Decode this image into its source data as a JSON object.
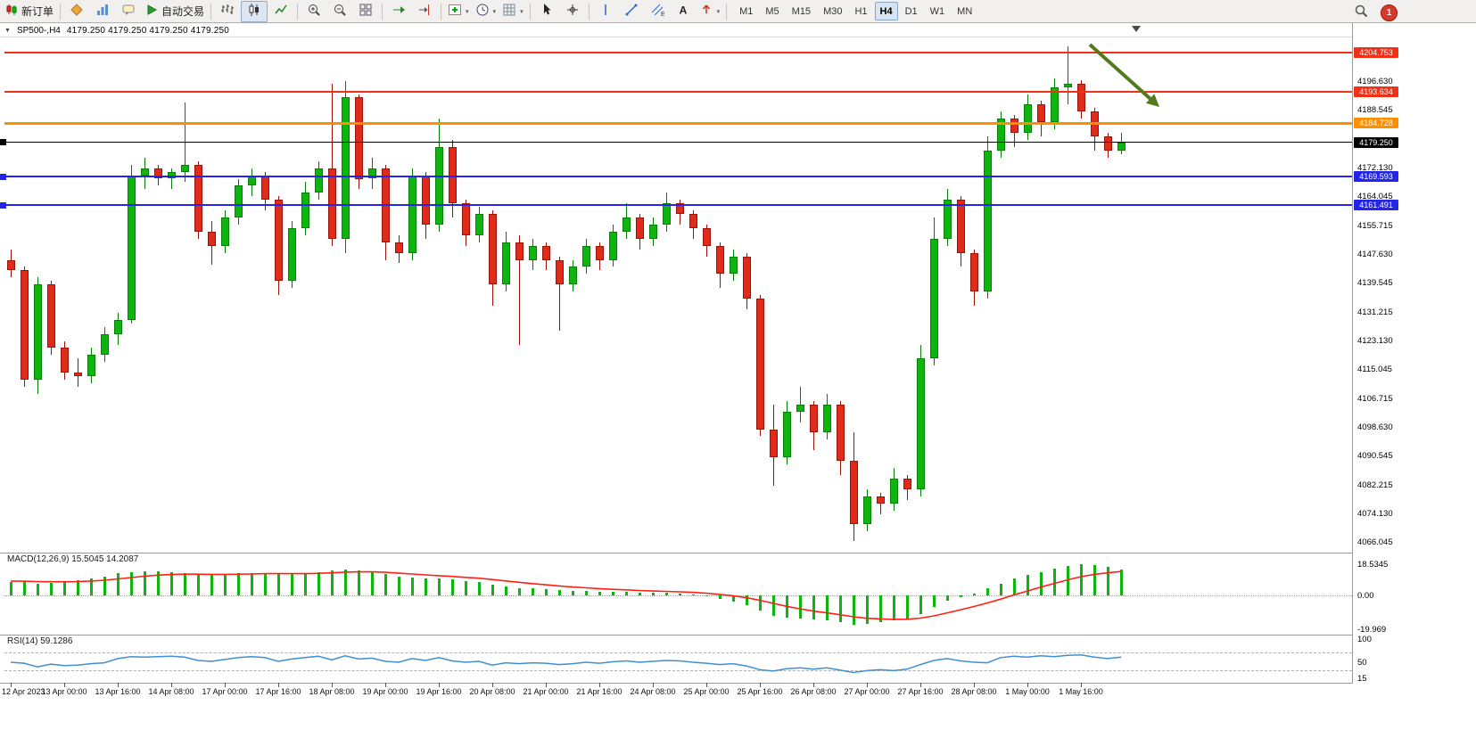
{
  "toolbar": {
    "new_order_label": "新订单",
    "auto_trading_label": "自动交易",
    "timeframe_labels": [
      "M1",
      "M5",
      "M15",
      "M30",
      "H1",
      "H4",
      "D1",
      "W1",
      "MN"
    ],
    "active_timeframe": "H4",
    "notification_badge": "1",
    "icons": [
      "new-order-icon",
      "metaquotes-icon",
      "charts-icon",
      "market-watch-icon",
      "auto-trading-icon",
      "bars-chart-icon",
      "candle-chart-icon",
      "line-chart-icon",
      "zoom-in-icon",
      "zoom-out-icon",
      "tile-windows-icon",
      "auto-scroll-icon",
      "chart-shift-icon",
      "add-indicator-icon",
      "period-icon",
      "grid-icon",
      "cursor-icon",
      "crosshair-icon",
      "vertical-line-icon",
      "trendline-icon",
      "equidistant-channel-icon",
      "text-label-icon",
      "arrow-object-icon",
      "search-icon",
      "notification-badge"
    ]
  },
  "chart_header": {
    "symbol": "SP500-,H4",
    "ohlc": "4179.250 4179.250 4179.250 4179.250"
  },
  "chart_data": {
    "type": "candlestick",
    "symbol": "SP500-",
    "timeframe": "H4",
    "colors": {
      "bull": "#0eb50e",
      "bull_border": "#067f06",
      "bear": "#e02a1a",
      "bear_border": "#9c1408",
      "macd_histogram": "#0eb50e",
      "macd_signal": "#ff2015",
      "rsi_line": "#3f8fd2",
      "line_red": "#f23018",
      "line_orange": "#ff8e00",
      "line_blue": "#2326e6",
      "line_black": "#000000",
      "arrow_green": "#557a1e"
    },
    "price_axis": {
      "max": 4204.753,
      "min": 4066.045,
      "labels": [
        "4196.630",
        "4188.545",
        "4172.130",
        "4164.045",
        "4155.715",
        "4147.630",
        "4139.545",
        "4131.215",
        "4123.130",
        "4115.045",
        "4106.715",
        "4098.630",
        "4090.545",
        "4082.215",
        "4074.130",
        "4066.045"
      ]
    },
    "hlines": [
      {
        "price": 4204.753,
        "label": "4204.753",
        "color": "#f23018",
        "thick": 2,
        "left_marker": false
      },
      {
        "price": 4193.634,
        "label": "4193.634",
        "color": "#f23018",
        "thick": 2,
        "left_marker": false
      },
      {
        "price": 4184.728,
        "label": "4184.728",
        "color": "#ff8e00",
        "thick": 3,
        "left_marker": false
      },
      {
        "price": 4179.25,
        "label": "4179.250",
        "color": "#000000",
        "thick": 1,
        "left_marker": true
      },
      {
        "price": 4169.593,
        "label": "4169.593",
        "color": "#2326e6",
        "thick": 2,
        "left_marker": true
      },
      {
        "price": 4161.491,
        "label": "4161.491",
        "color": "#2326e6",
        "thick": 2,
        "left_marker": true
      }
    ],
    "time_labels": [
      "12 Apr 2023",
      "13 Apr 00:00",
      "13 Apr 16:00",
      "14 Apr 08:00",
      "17 Apr 00:00",
      "17 Apr 16:00",
      "18 Apr 08:00",
      "19 Apr 00:00",
      "19 Apr 16:00",
      "20 Apr 08:00",
      "21 Apr 00:00",
      "21 Apr 16:00",
      "24 Apr 08:00",
      "25 Apr 00:00",
      "25 Apr 16:00",
      "26 Apr 08:00",
      "27 Apr 00:00",
      "27 Apr 16:00",
      "28 Apr 08:00",
      "1 May 00:00",
      "1 May 16:00"
    ],
    "bars_per_label": 4,
    "candles": [
      [
        4146,
        4149,
        4141,
        4143
      ],
      [
        4143,
        4144,
        4110,
        4112
      ],
      [
        4112,
        4141,
        4108,
        4139
      ],
      [
        4139,
        4140,
        4119,
        4121
      ],
      [
        4121,
        4123,
        4112,
        4114
      ],
      [
        4114,
        4118,
        4110,
        4113
      ],
      [
        4113,
        4121,
        4111,
        4119
      ],
      [
        4119,
        4127,
        4117,
        4125
      ],
      [
        4125,
        4131,
        4122,
        4129
      ],
      [
        4129,
        4173,
        4128,
        4170
      ],
      [
        4170,
        4175,
        4166,
        4172
      ],
      [
        4172,
        4173,
        4167,
        4169
      ],
      [
        4169,
        4172,
        4166,
        4171
      ],
      [
        4171,
        4190.5,
        4168,
        4173
      ],
      [
        4173,
        4174,
        4152,
        4154
      ],
      [
        4154,
        4157,
        4144.5,
        4150
      ],
      [
        4150,
        4160,
        4148,
        4158
      ],
      [
        4158,
        4169,
        4156,
        4167
      ],
      [
        4167,
        4172,
        4164,
        4170
      ],
      [
        4170,
        4171,
        4160,
        4163
      ],
      [
        4163,
        4164,
        4136,
        4140
      ],
      [
        4140,
        4157,
        4138,
        4155
      ],
      [
        4155,
        4168,
        4153,
        4165
      ],
      [
        4165,
        4174,
        4163,
        4172
      ],
      [
        4172,
        4196,
        4150,
        4152
      ],
      [
        4152,
        4196.6,
        4148,
        4192
      ],
      [
        4192,
        4193,
        4166,
        4169
      ],
      [
        4169,
        4175,
        4166,
        4172
      ],
      [
        4172,
        4173,
        4146,
        4151
      ],
      [
        4151,
        4153,
        4145,
        4148
      ],
      [
        4148,
        4172,
        4146,
        4170
      ],
      [
        4170,
        4171,
        4152,
        4156
      ],
      [
        4156,
        4186,
        4154,
        4178
      ],
      [
        4178,
        4180,
        4158,
        4162
      ],
      [
        4162,
        4163,
        4150,
        4153
      ],
      [
        4153,
        4161,
        4151,
        4159
      ],
      [
        4159,
        4160,
        4133,
        4139
      ],
      [
        4139,
        4154,
        4137,
        4151
      ],
      [
        4151,
        4153,
        4122,
        4146
      ],
      [
        4146,
        4152,
        4143,
        4150
      ],
      [
        4150,
        4151,
        4143,
        4146
      ],
      [
        4146,
        4147,
        4126,
        4139
      ],
      [
        4139,
        4146,
        4137,
        4144
      ],
      [
        4144,
        4152,
        4142,
        4150
      ],
      [
        4150,
        4151,
        4143,
        4146
      ],
      [
        4146,
        4156,
        4144,
        4154
      ],
      [
        4154,
        4162,
        4152,
        4158
      ],
      [
        4158,
        4159,
        4149,
        4152
      ],
      [
        4152,
        4158,
        4150,
        4156
      ],
      [
        4156,
        4165,
        4154,
        4162
      ],
      [
        4162,
        4163,
        4156,
        4159
      ],
      [
        4159,
        4160,
        4152,
        4155
      ],
      [
        4155,
        4156,
        4147,
        4150
      ],
      [
        4150,
        4151,
        4138,
        4142
      ],
      [
        4142,
        4149,
        4140,
        4147
      ],
      [
        4147,
        4148,
        4132,
        4135
      ],
      [
        4135,
        4136,
        4096,
        4098
      ],
      [
        4098,
        4105,
        4082,
        4090
      ],
      [
        4090,
        4106,
        4088,
        4103
      ],
      [
        4103,
        4110,
        4100,
        4105
      ],
      [
        4105,
        4106,
        4092,
        4097
      ],
      [
        4097,
        4108,
        4095,
        4105
      ],
      [
        4105,
        4106,
        4085,
        4089
      ],
      [
        4089,
        4097,
        4066.3,
        4071
      ],
      [
        4071,
        4081,
        4069,
        4079
      ],
      [
        4079,
        4080,
        4074,
        4077
      ],
      [
        4077,
        4087,
        4075,
        4084
      ],
      [
        4084,
        4085,
        4078,
        4081
      ],
      [
        4081,
        4122,
        4079,
        4118
      ],
      [
        4118,
        4158,
        4116,
        4152
      ],
      [
        4152,
        4166,
        4150,
        4163
      ],
      [
        4163,
        4164,
        4144,
        4148
      ],
      [
        4148,
        4149,
        4133,
        4137
      ],
      [
        4137,
        4181,
        4135,
        4177
      ],
      [
        4177,
        4188,
        4175,
        4186
      ],
      [
        4186,
        4187,
        4178,
        4182
      ],
      [
        4182,
        4193,
        4180,
        4190
      ],
      [
        4190,
        4191,
        4181,
        4185
      ],
      [
        4185,
        4197.5,
        4183,
        4195
      ],
      [
        4195,
        4206.5,
        4190,
        4196
      ],
      [
        4196,
        4197,
        4186,
        4188
      ],
      [
        4188,
        4189,
        4177,
        4181
      ],
      [
        4181,
        4182,
        4175,
        4177
      ],
      [
        4177,
        4182,
        4176,
        4179.25
      ]
    ],
    "macd": {
      "title": "MACD(12,26,9)",
      "values_label": "15.5045 14.2087",
      "axis_labels": [
        "18.5345",
        "0.00",
        "-19.969"
      ],
      "axis_max": 18.5345,
      "axis_min": -19.969,
      "histogram": [
        8,
        8.5,
        7,
        7.5,
        8,
        9,
        10,
        11,
        13,
        14,
        14.5,
        14.5,
        14,
        13.5,
        12.5,
        12,
        12.5,
        13,
        13.5,
        13.5,
        12.5,
        12.5,
        13,
        14,
        15,
        15.5,
        15,
        14,
        12.5,
        11,
        10.5,
        10,
        10,
        9.5,
        8.5,
        8,
        6.5,
        5.5,
        4.5,
        4,
        3.5,
        3,
        2.5,
        2.5,
        2,
        2,
        2,
        1.5,
        1.5,
        1.5,
        1,
        0.5,
        -0.5,
        -2,
        -3.5,
        -6,
        -9,
        -12,
        -13.5,
        -14,
        -14.5,
        -15,
        -16,
        -17.5,
        -17,
        -16,
        -15,
        -14,
        -11,
        -7,
        -3,
        -1,
        1,
        4,
        7,
        10,
        12,
        14,
        16,
        17.5,
        18.5,
        18,
        17,
        15.5
      ],
      "signal": [
        8.5,
        8.4,
        8.2,
        8.1,
        8.1,
        8.2,
        8.5,
        9,
        9.8,
        10.6,
        11.4,
        12,
        12.4,
        12.6,
        12.6,
        12.5,
        12.5,
        12.6,
        12.7,
        12.9,
        12.9,
        12.9,
        12.9,
        13.1,
        13.4,
        13.8,
        14,
        14,
        13.7,
        13.2,
        12.7,
        12.2,
        11.7,
        11.3,
        10.7,
        10.2,
        9.4,
        8.6,
        7.8,
        7,
        6.3,
        5.6,
        5,
        4.5,
        4,
        3.6,
        3.3,
        2.9,
        2.6,
        2.4,
        2.1,
        1.8,
        1.3,
        0.6,
        -0.2,
        -1.4,
        -2.9,
        -4.7,
        -6.5,
        -8,
        -9.3,
        -10.4,
        -11.5,
        -12.7,
        -13.6,
        -14,
        -14.2,
        -14.2,
        -13.5,
        -12.2,
        -10.4,
        -8.5,
        -6.6,
        -4.5,
        -2.2,
        0.3,
        2.6,
        4.9,
        7.1,
        9.2,
        11.1,
        12.5,
        13.4,
        14.2
      ]
    },
    "rsi": {
      "title": "RSI(14)",
      "value_label": "59.1286",
      "axis_labels": [
        "100",
        "50",
        "15"
      ],
      "levels": [
        70,
        30
      ],
      "values": [
        48,
        46,
        38,
        44,
        41,
        42,
        45,
        47,
        56,
        60,
        59,
        60,
        61,
        59,
        52,
        50,
        54,
        58,
        60,
        58,
        50,
        55,
        58,
        61,
        53,
        62,
        55,
        57,
        50,
        48,
        56,
        52,
        58,
        51,
        48,
        50,
        42,
        47,
        45,
        47,
        46,
        43,
        45,
        48,
        46,
        49,
        51,
        48,
        50,
        52,
        51,
        48,
        46,
        43,
        45,
        40,
        32,
        29,
        34,
        36,
        33,
        36,
        31,
        26,
        30,
        32,
        30,
        33,
        43,
        52,
        56,
        51,
        48,
        47,
        58,
        61,
        59,
        62,
        60,
        63,
        64,
        59,
        56,
        59.13
      ]
    }
  }
}
